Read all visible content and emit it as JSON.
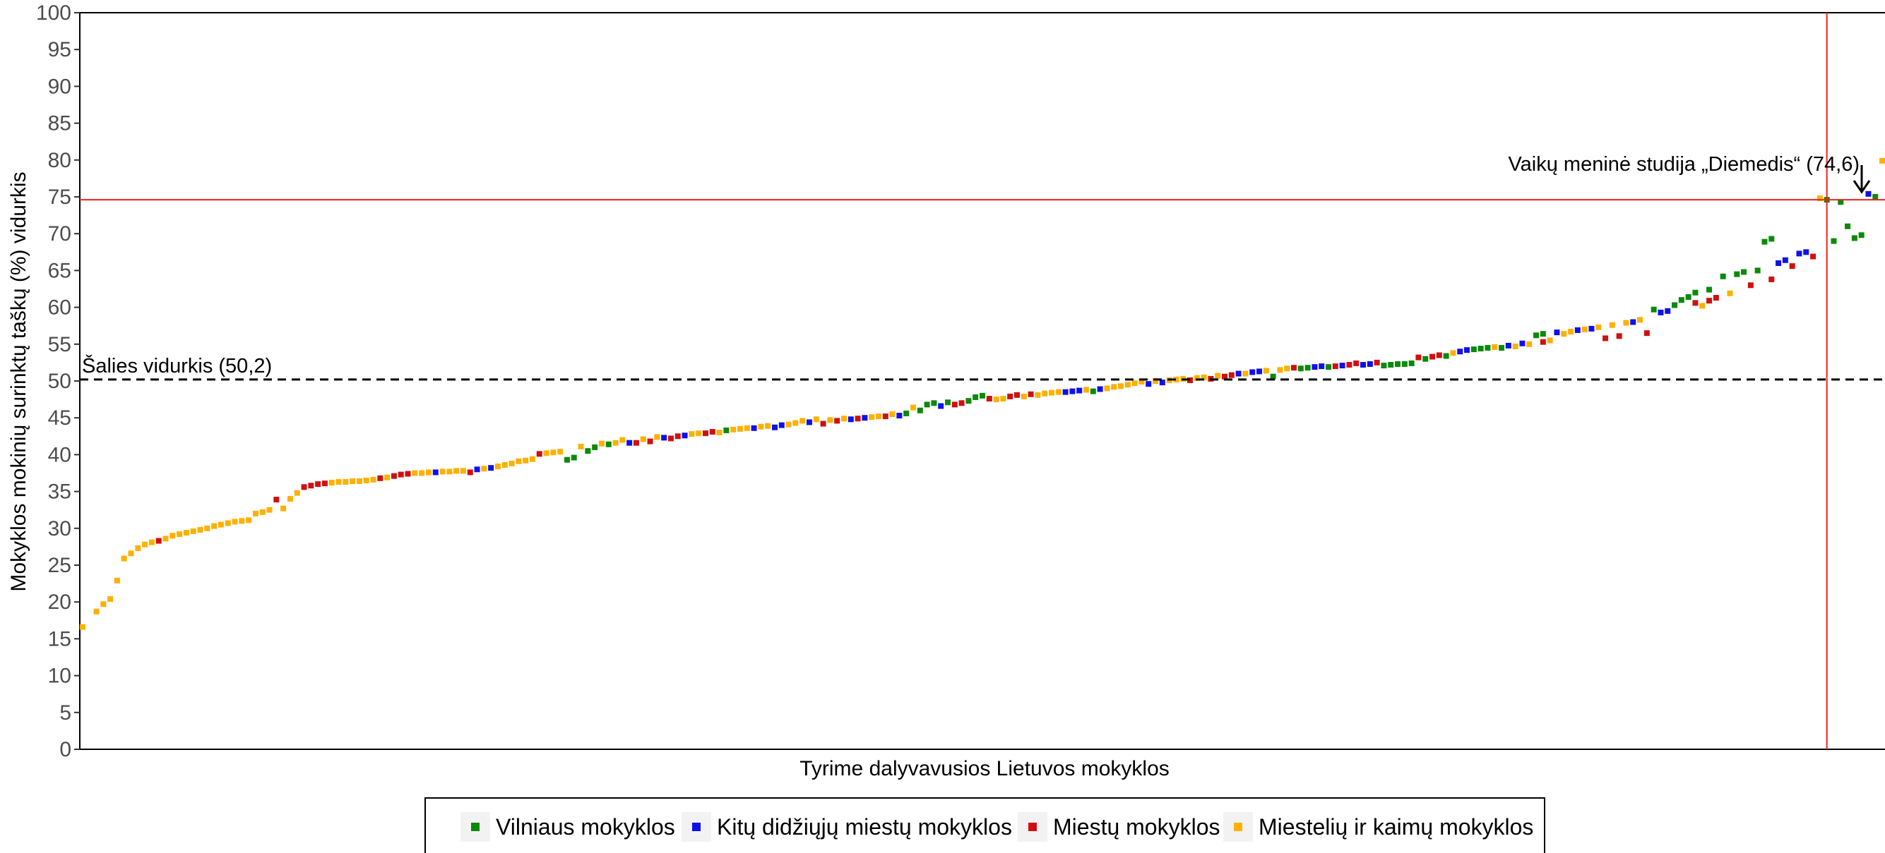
{
  "chart_data": {
    "type": "scatter",
    "title": "",
    "xlabel": "Tyrime dalyvavusios Lietuvos mokyklos",
    "ylabel": "Mokyklos mokinių surinktų taškų (%) vidurkis",
    "ylim": [
      0,
      100
    ],
    "yticks": [
      0,
      5,
      10,
      15,
      20,
      25,
      30,
      35,
      40,
      45,
      50,
      55,
      60,
      65,
      70,
      75,
      80,
      85,
      90,
      95,
      100
    ],
    "grid": false,
    "legend_position": "bottom",
    "colors": {
      "vilnius": "#0a8a0a",
      "kiti": "#1010e8",
      "miestai": "#d01010",
      "miesteliai": "#ffb000",
      "reference_line": "#ee2222",
      "average_line": "#000000"
    },
    "reference_lines": {
      "national_average": {
        "value": 50.2,
        "label": "Šalies vidurkis (50,2)"
      },
      "highlight": {
        "value": 74.6,
        "label": "Vaikų meninė studija „Diemedis“ (74,6)",
        "rank": 253,
        "category": "vilnius"
      }
    },
    "series": [
      {
        "key": "vilnius",
        "name": "Vilniaus mokyklos",
        "x": [
          71,
          72,
          74,
          75,
          77,
          94,
          120,
          122,
          123,
          124,
          126,
          129,
          130,
          131,
          147,
          173,
          177,
          178,
          181,
          189,
          190,
          191,
          192,
          193,
          195,
          198,
          202,
          203,
          204,
          206,
          211,
          212,
          228,
          231,
          232,
          233,
          234,
          236,
          238,
          240,
          241,
          243,
          244,
          245,
          253,
          254,
          255,
          256,
          257,
          258,
          260
        ],
        "y": [
          39.3,
          39.6,
          40.5,
          41,
          41.4,
          43.3,
          45.6,
          46,
          46.8,
          47,
          47.1,
          47.3,
          47.8,
          48,
          48.6,
          50.6,
          51.7,
          51.8,
          51.9,
          52.1,
          52.2,
          52.3,
          52.3,
          52.4,
          53,
          53.4,
          54.3,
          54.4,
          54.5,
          54.5,
          56.2,
          56.4,
          59.7,
          60.3,
          61,
          61.4,
          62,
          62.4,
          64.2,
          64.5,
          64.8,
          65,
          68.9,
          69.3,
          74.6,
          69,
          74.3,
          71,
          69.4,
          69.8,
          75
        ]
      },
      {
        "key": "kiti",
        "name": "Kitų didžiųjų miestų mokyklos",
        "x": [
          52,
          58,
          60,
          80,
          85,
          88,
          98,
          101,
          102,
          106,
          112,
          114,
          119,
          125,
          143,
          144,
          145,
          148,
          155,
          157,
          168,
          170,
          171,
          179,
          180,
          183,
          186,
          187,
          200,
          201,
          207,
          209,
          214,
          217,
          219,
          225,
          229,
          230,
          246,
          247,
          249,
          250,
          259
        ],
        "y": [
          37.6,
          38,
          38.2,
          41.6,
          42.3,
          42.6,
          43.6,
          43.7,
          44,
          44.4,
          44.8,
          45,
          45.3,
          46.6,
          48.5,
          48.6,
          48.7,
          48.9,
          49.6,
          49.8,
          51,
          51.2,
          51.3,
          51.9,
          52,
          52.1,
          52.2,
          52.3,
          54,
          54.2,
          54.8,
          55.1,
          56.6,
          56.9,
          57.1,
          58,
          59.3,
          59.5,
          66,
          66.4,
          67.3,
          67.5,
          75.4
        ]
      },
      {
        "key": "miestai",
        "name": "Miestų mokyklos",
        "x": [
          12,
          29,
          33,
          34,
          35,
          36,
          44,
          46,
          47,
          48,
          57,
          67,
          81,
          83,
          86,
          87,
          91,
          92,
          108,
          110,
          113,
          117,
          127,
          128,
          132,
          135,
          136,
          138,
          161,
          164,
          166,
          167,
          176,
          182,
          184,
          185,
          188,
          194,
          196,
          197,
          212,
          221,
          223,
          227,
          234,
          236,
          237,
          242,
          245,
          248,
          251
        ],
        "y": [
          28.3,
          33.9,
          35.6,
          35.8,
          36,
          36.1,
          36.8,
          37.1,
          37.3,
          37.4,
          37.6,
          40.1,
          41.6,
          41.8,
          42.2,
          42.5,
          42.9,
          43.1,
          44.2,
          44.6,
          44.9,
          45.2,
          46.8,
          47,
          47.6,
          47.9,
          48.1,
          48.2,
          50.1,
          50.3,
          50.6,
          50.8,
          51.8,
          52,
          52.2,
          52.4,
          52.5,
          53.2,
          53.3,
          53.5,
          55.3,
          55.8,
          56.1,
          56.5,
          60.6,
          60.9,
          61.3,
          63,
          63.8,
          65.6,
          66.9
        ]
      },
      {
        "key": "miesteliai",
        "name": "Miestelių ir kaimų mokyklos",
        "x": [
          1,
          3,
          4,
          5,
          6,
          7,
          8,
          9,
          10,
          11,
          13,
          14,
          15,
          16,
          17,
          18,
          19,
          20,
          21,
          22,
          23,
          24,
          25,
          26,
          27,
          28,
          30,
          31,
          32,
          37,
          38,
          39,
          40,
          41,
          42,
          43,
          45,
          49,
          50,
          51,
          53,
          54,
          55,
          56,
          59,
          61,
          62,
          63,
          64,
          65,
          66,
          68,
          69,
          70,
          73,
          76,
          78,
          79,
          82,
          84,
          89,
          90,
          93,
          95,
          96,
          97,
          99,
          100,
          103,
          104,
          105,
          107,
          109,
          111,
          115,
          116,
          118,
          121,
          133,
          134,
          137,
          139,
          140,
          141,
          142,
          146,
          149,
          150,
          151,
          152,
          153,
          154,
          156,
          158,
          159,
          160,
          162,
          163,
          165,
          169,
          172,
          174,
          175,
          199,
          205,
          208,
          210,
          213,
          215,
          216,
          218,
          220,
          222,
          224,
          226,
          235,
          239,
          252,
          261
        ],
        "y": [
          16.6,
          18.7,
          19.7,
          20.4,
          22.9,
          25.9,
          26.6,
          27.3,
          27.8,
          28.1,
          28.6,
          29,
          29.2,
          29.4,
          29.6,
          29.8,
          30,
          30.3,
          30.5,
          30.7,
          30.9,
          31,
          31.1,
          32,
          32.2,
          32.5,
          32.7,
          34,
          34.8,
          36.2,
          36.3,
          36.3,
          36.4,
          36.4,
          36.5,
          36.6,
          36.9,
          37.5,
          37.5,
          37.6,
          37.7,
          37.7,
          37.8,
          37.8,
          38.1,
          38.4,
          38.6,
          38.8,
          39.1,
          39.2,
          39.4,
          40.2,
          40.3,
          40.4,
          41.1,
          41.5,
          41.6,
          42,
          42.1,
          42.4,
          42.8,
          42.9,
          43,
          43.4,
          43.5,
          43.6,
          43.8,
          43.9,
          44.1,
          44.3,
          44.6,
          44.8,
          44.7,
          44.9,
          45.1,
          45.2,
          45.5,
          46.4,
          47.5,
          47.6,
          47.9,
          48.1,
          48.3,
          48.4,
          48.5,
          48.8,
          49,
          49.2,
          49.3,
          49.5,
          49.7,
          49.9,
          50,
          50.1,
          50.2,
          50.3,
          50.4,
          50.5,
          50.7,
          51,
          51.4,
          51.5,
          51.7,
          53.8,
          54.6,
          54.7,
          55,
          55.5,
          56.4,
          56.7,
          57,
          57.3,
          57.6,
          57.9,
          58.3,
          60.2,
          61.9,
          74.8,
          79.9
        ]
      }
    ]
  }
}
